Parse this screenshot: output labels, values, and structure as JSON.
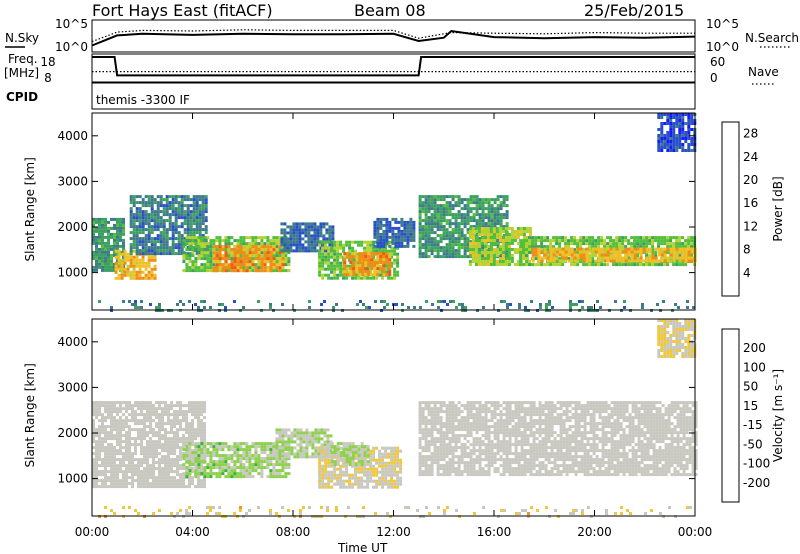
{
  "header": {
    "station": "Fort Hays East (fitACF)",
    "beam": "Beam 08",
    "date": "25/Feb/2015"
  },
  "panel_labels": {
    "nsky": "N.Sky",
    "nsearch": "N.Search",
    "freq": "Freq.",
    "freq_unit": "[MHz]",
    "nave": "Nave",
    "cpid": "CPID",
    "cpid_value": "themis -3300 IF"
  },
  "noise_axis": {
    "left_ticks": [
      "10^5",
      "10^0"
    ],
    "right_ticks": [
      "10^5",
      "10^0"
    ]
  },
  "freq_axis": {
    "left_ticks": [
      "18",
      "8"
    ],
    "right_ticks": [
      "60",
      "0"
    ]
  },
  "colors": {
    "power_scale": [
      "#1a1aff",
      "#2850c8",
      "#3c7a8c",
      "#3ea060",
      "#4fbf3c",
      "#b4d232",
      "#f0c028",
      "#f08c18",
      "#f05a14",
      "#e61414"
    ],
    "velocity_scale": [
      "#ff0000",
      "#f55a14",
      "#f09628",
      "#f0c83c",
      "#c8c8c0",
      "#c8c8c0",
      "#8cd24a",
      "#3cb43c",
      "#2d6eaa",
      "#1e1eb4"
    ]
  },
  "chart_data": [
    {
      "type": "line",
      "name": "noise",
      "x": [
        0,
        1,
        2,
        4,
        6,
        8,
        10,
        12,
        13,
        14,
        14.3,
        16,
        18,
        20,
        22,
        24
      ],
      "series": [
        {
          "name": "N.Sky",
          "values": [
            0.8,
            2.6,
            2.9,
            2.7,
            2.9,
            2.8,
            2.8,
            2.9,
            1.6,
            2.2,
            3.4,
            2.3,
            2.1,
            2.3,
            2.2,
            2.4
          ]
        },
        {
          "name": "N.Search",
          "values": [
            1.5,
            3.2,
            3.5,
            3.4,
            3.6,
            3.5,
            3.5,
            3.5,
            2.1,
            2.9,
            3.1,
            3.0,
            2.9,
            3.1,
            3.0,
            3.0
          ]
        }
      ]
    },
    {
      "type": "line",
      "name": "freq-nave",
      "x": [
        0,
        0.9,
        1.0,
        13.0,
        13.1,
        24
      ],
      "series": [
        {
          "name": "Freq.",
          "values": [
            18,
            18,
            10,
            10,
            18,
            18
          ]
        },
        {
          "name": "Nave",
          "values": [
            22,
            22,
            22,
            22,
            22,
            22
          ]
        }
      ]
    },
    {
      "type": "heatmap",
      "title": "",
      "xlabel": "Time UT",
      "ylabel": "Slant Range [km]",
      "x_ticks": [
        "00:00",
        "04:00",
        "08:00",
        "12:00",
        "16:00",
        "20:00",
        "00:00"
      ],
      "y_ticks": [
        "1000",
        "2000",
        "3000",
        "4000"
      ],
      "ylim": [
        180,
        4500
      ],
      "colorbar": {
        "label": "Power [dB]",
        "ticks": [
          "4",
          "8",
          "12",
          "16",
          "20",
          "24",
          "28"
        ],
        "range": [
          0,
          30
        ]
      },
      "blobs": [
        {
          "t0": 0.0,
          "t1": 1.2,
          "r0": 1050,
          "r1": 2200,
          "value": 10
        },
        {
          "t0": 0.9,
          "t1": 2.5,
          "r0": 850,
          "r1": 1500,
          "value": 20
        },
        {
          "t0": 1.5,
          "t1": 4.5,
          "r0": 1400,
          "r1": 2700,
          "value": 8
        },
        {
          "t0": 3.6,
          "t1": 7.8,
          "r0": 1050,
          "r1": 1800,
          "value": 14
        },
        {
          "t0": 4.8,
          "t1": 7.6,
          "r0": 1050,
          "r1": 1600,
          "value": 22
        },
        {
          "t0": 7.5,
          "t1": 9.6,
          "r0": 1500,
          "r1": 2100,
          "value": 6
        },
        {
          "t0": 9.0,
          "t1": 12.2,
          "r0": 850,
          "r1": 1700,
          "value": 14
        },
        {
          "t0": 10.0,
          "t1": 11.8,
          "r0": 950,
          "r1": 1450,
          "value": 22
        },
        {
          "t0": 11.2,
          "t1": 12.8,
          "r0": 1600,
          "r1": 2200,
          "value": 6
        },
        {
          "t0": 13.0,
          "t1": 16.5,
          "r0": 1350,
          "r1": 2700,
          "value": 10
        },
        {
          "t0": 15.0,
          "t1": 17.5,
          "r0": 1200,
          "r1": 2000,
          "value": 16
        },
        {
          "t0": 17.0,
          "t1": 24.0,
          "r0": 1150,
          "r1": 1800,
          "value": 14
        },
        {
          "t0": 17.5,
          "t1": 24.0,
          "r0": 1250,
          "r1": 1550,
          "value": 20
        },
        {
          "t0": 22.5,
          "t1": 24.0,
          "r0": 3700,
          "r1": 4500,
          "value": 4
        },
        {
          "t0": 0.0,
          "t1": 24.0,
          "r0": 190,
          "r1": 400,
          "value": 8
        }
      ]
    },
    {
      "type": "heatmap",
      "title": "",
      "xlabel": "Time UT",
      "ylabel": "Slant Range [km]",
      "x_ticks": [
        "00:00",
        "04:00",
        "08:00",
        "12:00",
        "16:00",
        "20:00",
        "00:00"
      ],
      "y_ticks": [
        "1000",
        "2000",
        "3000",
        "4000"
      ],
      "ylim": [
        180,
        4500
      ],
      "colorbar": {
        "label": "Velocity [m s⁻¹]",
        "ticks": [
          "200",
          "100",
          "50",
          "15",
          "-15",
          "-50",
          "-100",
          "-200"
        ],
        "range": [
          -250,
          250
        ]
      },
      "blobs": [
        {
          "t0": 0.0,
          "t1": 4.5,
          "r0": 800,
          "r1": 2700,
          "value": 0
        },
        {
          "t0": 3.6,
          "t1": 7.8,
          "r0": 1050,
          "r1": 1800,
          "value": 60
        },
        {
          "t0": 7.3,
          "t1": 9.5,
          "r0": 1500,
          "r1": 2100,
          "value": 40
        },
        {
          "t0": 9.0,
          "t1": 12.3,
          "r0": 800,
          "r1": 1700,
          "value": -40
        },
        {
          "t0": 9.5,
          "t1": 11.0,
          "r0": 1300,
          "r1": 1800,
          "value": 40
        },
        {
          "t0": 13.0,
          "t1": 24.0,
          "r0": 1100,
          "r1": 2700,
          "value": 0
        },
        {
          "t0": 22.5,
          "t1": 24.0,
          "r0": 3700,
          "r1": 4500,
          "value": -40
        },
        {
          "t0": 0.0,
          "t1": 24.0,
          "r0": 190,
          "r1": 400,
          "value": -60
        }
      ]
    }
  ]
}
